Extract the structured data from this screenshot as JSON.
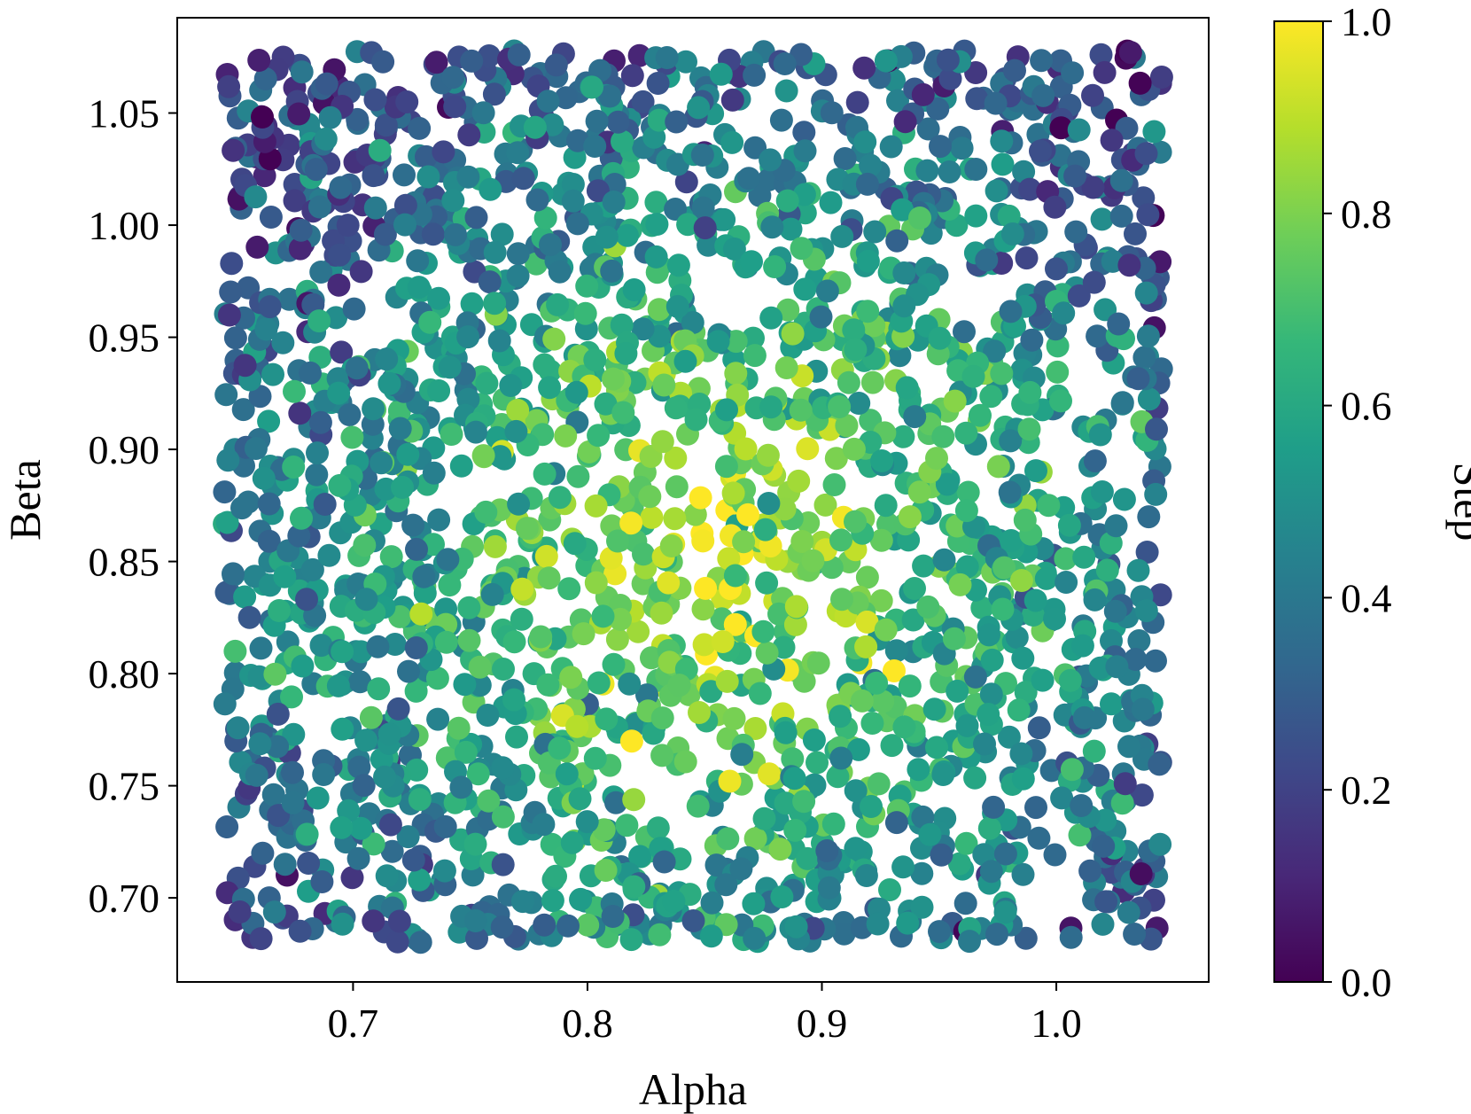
{
  "chart_data": {
    "type": "scatter",
    "title": "",
    "xlabel": "Alpha",
    "ylabel": "Beta",
    "colorbar_label": "Step",
    "xlim": [
      0.625,
      1.065
    ],
    "ylim": [
      0.6625,
      1.0925
    ],
    "xticks": [
      0.7,
      0.8,
      0.9,
      1.0
    ],
    "xtick_labels": [
      "0.7",
      "0.8",
      "0.9",
      "1.0"
    ],
    "yticks": [
      0.7,
      0.75,
      0.8,
      0.85,
      0.9,
      0.95,
      1.0,
      1.05
    ],
    "ytick_labels": [
      "0.70",
      "0.75",
      "0.80",
      "0.85",
      "0.90",
      "0.95",
      "1.00",
      "1.05"
    ],
    "colorbar_range": [
      0.0,
      1.0
    ],
    "colorbar_ticks": [
      0.0,
      0.2,
      0.4,
      0.6,
      0.8,
      1.0
    ],
    "colorbar_tick_labels": [
      "0.0",
      "0.2",
      "0.4",
      "0.6",
      "0.8",
      "1.0"
    ],
    "colormap": "viridis",
    "colormap_stops": [
      "#440154",
      "#482878",
      "#3e4989",
      "#31688e",
      "#26828e",
      "#1f9e89",
      "#35b779",
      "#6ece58",
      "#b5de2b",
      "#fde725"
    ],
    "point_color_description": "Step value per point; higher values concentrate near the centre",
    "alpha_range": [
      0.645,
      1.045
    ],
    "beta_range": [
      0.68,
      1.078
    ],
    "n_points": 2400,
    "colors": {
      "axes": "#000000",
      "background": "#ffffff"
    }
  }
}
